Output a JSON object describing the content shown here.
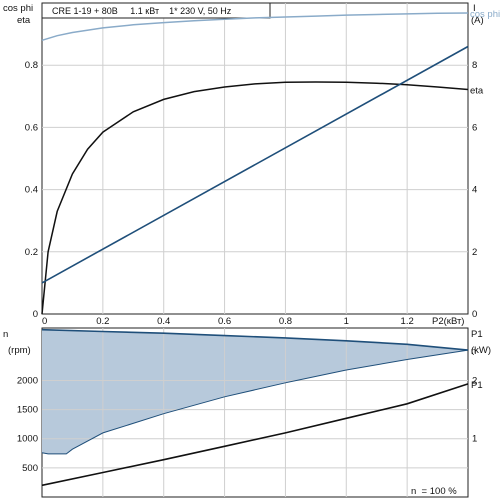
{
  "chart_data": [
    {
      "type": "line",
      "title": "CRE 1-19 + 80B     1.1 кВт    1* 230 V, 50 Hz",
      "xlabel": "P2(кВт)",
      "ylabel_left_top": "cos phi",
      "ylabel_left_bottom": "eta",
      "ylabel_right_top": "I",
      "ylabel_right_bottom": "(A)",
      "xlim": [
        0,
        1.4
      ],
      "ylim_left": [
        0,
        1.0
      ],
      "ylim_right": [
        0,
        10
      ],
      "x_ticks": [
        "0",
        "0.2",
        "0.4",
        "0.6",
        "0.8",
        "1",
        "1.2"
      ],
      "x_tick_values": [
        0,
        0.2,
        0.4,
        0.6,
        0.8,
        1.0,
        1.2
      ],
      "y_left_ticks": [
        "0",
        "0.2",
        "0.4",
        "0.6",
        "0.8"
      ],
      "y_left_tick_values": [
        0,
        0.2,
        0.4,
        0.6,
        0.8
      ],
      "y_right_ticks": [
        "0",
        "2",
        "4",
        "6",
        "8"
      ],
      "y_right_tick_values": [
        0,
        2,
        4,
        6,
        8
      ],
      "grid": true,
      "series": [
        {
          "name": "cos phi",
          "axis": "left",
          "color": "#8aabc9",
          "x": [
            0,
            0.05,
            0.1,
            0.2,
            0.3,
            0.4,
            0.5,
            0.6,
            0.7,
            0.8,
            0.9,
            1.0,
            1.1,
            1.2,
            1.3,
            1.4
          ],
          "y": [
            0.88,
            0.895,
            0.905,
            0.92,
            0.93,
            0.937,
            0.943,
            0.948,
            0.952,
            0.955,
            0.958,
            0.961,
            0.963,
            0.965,
            0.967,
            0.968
          ]
        },
        {
          "name": "eta",
          "axis": "left",
          "color": "#111111",
          "x": [
            0,
            0.02,
            0.05,
            0.1,
            0.15,
            0.2,
            0.3,
            0.4,
            0.5,
            0.6,
            0.7,
            0.8,
            0.9,
            1.0,
            1.1,
            1.2,
            1.3,
            1.4
          ],
          "y": [
            0.0,
            0.2,
            0.33,
            0.45,
            0.53,
            0.585,
            0.65,
            0.69,
            0.715,
            0.73,
            0.74,
            0.745,
            0.746,
            0.745,
            0.742,
            0.737,
            0.73,
            0.722
          ]
        },
        {
          "name": "I",
          "axis": "right",
          "color": "#1f4f7a",
          "x": [
            0,
            1.4
          ],
          "y": [
            1.0,
            8.6
          ]
        }
      ]
    },
    {
      "type": "area",
      "xlim": [
        0,
        1.4
      ],
      "ylabel_left_top": "n",
      "ylabel_left_bottom": "(rpm)",
      "ylabel_right_top": "P1",
      "ylabel_right_bottom": "(kW)",
      "y_left_ticks": [
        "500",
        "1000",
        "1500",
        "2000"
      ],
      "y_left_tick_values": [
        500,
        1000,
        1500,
        2000
      ],
      "ylim_left": [
        0,
        2900
      ],
      "y_right_ticks": [
        "1",
        "2"
      ],
      "y_right_tick_values": [
        1,
        2
      ],
      "ylim_right": [
        0,
        2.9
      ],
      "footer": "n  = 100 %",
      "grid": true,
      "fill_color": "#b7c9db",
      "series": [
        {
          "name": "n",
          "role": "upper",
          "color": "#1f4f7a",
          "x": [
            0,
            0.2,
            0.4,
            0.6,
            0.8,
            1.0,
            1.2,
            1.4
          ],
          "y": [
            2870,
            2840,
            2810,
            2770,
            2730,
            2680,
            2620,
            2520
          ]
        },
        {
          "role": "lower",
          "color": "#1f4f7a",
          "x": [
            0,
            0.02,
            0.08,
            0.1,
            0.2,
            0.4,
            0.6,
            0.8,
            1.0,
            1.2,
            1.4
          ],
          "y": [
            760,
            740,
            740,
            820,
            1100,
            1430,
            1720,
            1960,
            2180,
            2360,
            2520
          ]
        },
        {
          "name": "P1",
          "axis": "right",
          "color": "#111111",
          "x": [
            0,
            0.2,
            0.4,
            0.6,
            0.8,
            1.0,
            1.2,
            1.4
          ],
          "y": [
            0.2,
            0.42,
            0.64,
            0.87,
            1.1,
            1.35,
            1.6,
            1.94
          ]
        }
      ]
    }
  ]
}
